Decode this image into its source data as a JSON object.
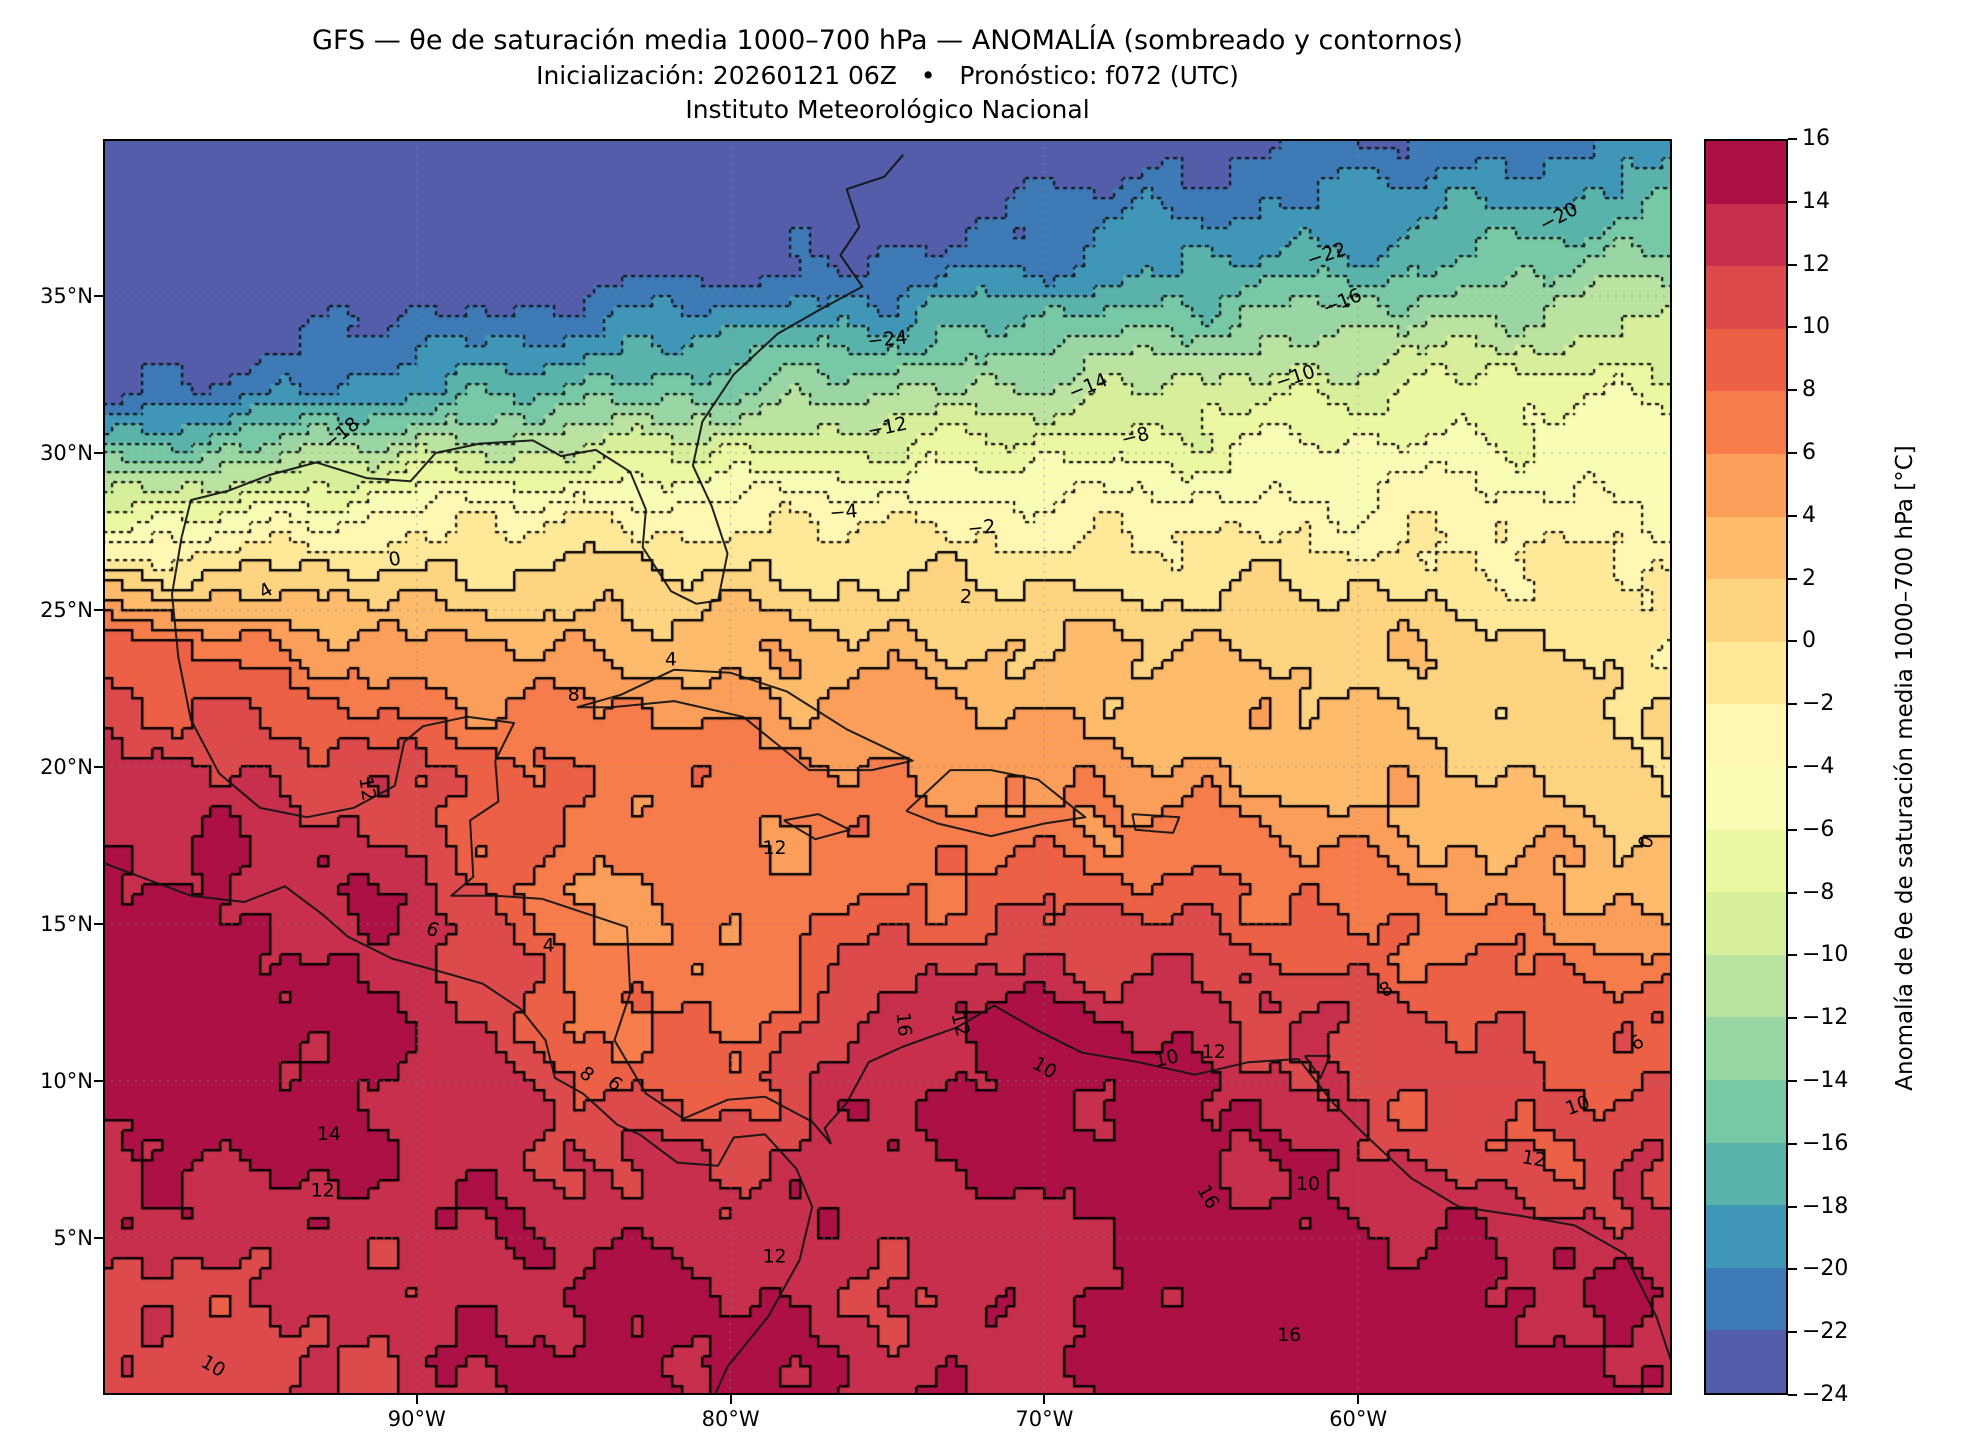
{
  "chart_data": {
    "type": "heatmap",
    "title": "GFS — θe de saturación media 1000–700 hPa — ANOMALÍA (sombreado y contornos)",
    "subtitle": "Inicialización: 20260121 06Z   •   Pronóstico: f072 (UTC)",
    "institution": "Instituto Meteorológico Nacional",
    "map_extent": {
      "lon_min": -100,
      "lon_max": -50,
      "lat_min": 0,
      "lat_max": 40
    },
    "x_axis": {
      "ticks": [
        {
          "label": "90°W",
          "lon": -90
        },
        {
          "label": "80°W",
          "lon": -80
        },
        {
          "label": "70°W",
          "lon": -70
        },
        {
          "label": "60°W",
          "lon": -60
        }
      ]
    },
    "y_axis": {
      "ticks": [
        {
          "label": "35°N",
          "lat": 35
        },
        {
          "label": "30°N",
          "lat": 30
        },
        {
          "label": "25°N",
          "lat": 25
        },
        {
          "label": "20°N",
          "lat": 20
        },
        {
          "label": "15°N",
          "lat": 15
        },
        {
          "label": "10°N",
          "lat": 10
        },
        {
          "label": "5°N",
          "lat": 5
        }
      ]
    },
    "colorbar": {
      "label": "Anomalía de θe de saturación media 1000–700 hPa [°C]",
      "levels_min": -24,
      "levels_max": 16,
      "level_step": 2,
      "tick_labels": [
        "16",
        "14",
        "12",
        "10",
        "8",
        "6",
        "4",
        "2",
        "0",
        "−2",
        "−4",
        "−6",
        "−8",
        "−10",
        "−12",
        "−14",
        "−16",
        "−18",
        "−20",
        "−22",
        "−24"
      ],
      "colors_low_to_high": [
        "#535da9",
        "#3d7ab6",
        "#3f96b7",
        "#59b3ab",
        "#77c9a5",
        "#9ad6a4",
        "#bae3a1",
        "#d7ef9b",
        "#ecf7a2",
        "#f9fcb5",
        "#fff7b2",
        "#ffe898",
        "#fed481",
        "#febb6c",
        "#fb9e5a",
        "#f67d4b",
        "#ec6146",
        "#dd4a4c",
        "#c72f4c",
        "#ac1045"
      ]
    },
    "contours": {
      "interval_c": 2,
      "negative_style": "dotted",
      "zero_positive_style": "solid"
    },
    "field_grid": {
      "lons": [
        -100,
        -95,
        -90,
        -85,
        -80,
        -75,
        -70,
        -65,
        -60,
        -55,
        -50
      ],
      "lats": [
        40,
        36,
        32,
        28,
        24,
        20,
        16,
        12,
        8,
        4,
        0
      ],
      "values_c": [
        [
          -27,
          -27,
          -27,
          -26,
          -26,
          -25,
          -24,
          -23,
          -22,
          -21,
          -20
        ],
        [
          -26,
          -25,
          -25,
          -24,
          -23,
          -22,
          -20,
          -18,
          -17,
          -15,
          -13
        ],
        [
          -23,
          -21,
          -18,
          -16,
          -14,
          -12.5,
          -11,
          -9.5,
          -8,
          -7,
          -6
        ],
        [
          -8,
          -5,
          -3,
          -2.5,
          -2.5,
          -2.5,
          -3,
          -3,
          -3,
          -3,
          -3.5
        ],
        [
          9,
          6,
          4,
          3.5,
          3,
          2.5,
          2,
          2,
          1.5,
          0.5,
          -1
        ],
        [
          13,
          12,
          10,
          8,
          7,
          6,
          5,
          4,
          3,
          1.5,
          0.2
        ],
        [
          15,
          14,
          13,
          6,
          6,
          8,
          9,
          9,
          7,
          5,
          3
        ],
        [
          16,
          15,
          14,
          8,
          7,
          13,
          15,
          13,
          11,
          10,
          9
        ],
        [
          14,
          15,
          14,
          12,
          11,
          14,
          15,
          15,
          12,
          10,
          11
        ],
        [
          12,
          12,
          13,
          14,
          14,
          12,
          13,
          15,
          16,
          14,
          13
        ],
        [
          10,
          11,
          13,
          15,
          15,
          13,
          14,
          16,
          16,
          15,
          14
        ]
      ]
    },
    "contour_labels": [
      {
        "text": "−24",
        "lon": -75.0,
        "lat": 33.6,
        "rot": -6
      },
      {
        "text": "−22",
        "lon": -61.0,
        "lat": 36.3,
        "rot": -18
      },
      {
        "text": "−20",
        "lon": -53.6,
        "lat": 37.5,
        "rot": -28
      },
      {
        "text": "−18",
        "lon": -92.4,
        "lat": 30.6,
        "rot": -38
      },
      {
        "text": "−16",
        "lon": -60.5,
        "lat": 34.8,
        "rot": -22
      },
      {
        "text": "−14",
        "lon": -68.6,
        "lat": 32.1,
        "rot": -22
      },
      {
        "text": "−12",
        "lon": -75.0,
        "lat": 30.8,
        "rot": -12
      },
      {
        "text": "−10",
        "lon": -62.0,
        "lat": 32.4,
        "rot": -18
      },
      {
        "text": "−8",
        "lon": -67.1,
        "lat": 30.5,
        "rot": -14
      },
      {
        "text": "−4",
        "lon": -76.4,
        "lat": 28.1,
        "rot": -5
      },
      {
        "text": "−2",
        "lon": -72.0,
        "lat": 27.6,
        "rot": -6
      },
      {
        "text": "0",
        "lon": -90.7,
        "lat": 26.6,
        "rot": -10
      },
      {
        "text": "4",
        "lon": -94.8,
        "lat": 25.6,
        "rot": -30
      },
      {
        "text": "2",
        "lon": -72.5,
        "lat": 25.4,
        "rot": 4
      },
      {
        "text": "4",
        "lon": -81.9,
        "lat": 23.4,
        "rot": 0
      },
      {
        "text": "8",
        "lon": -85.0,
        "lat": 22.3,
        "rot": 0
      },
      {
        "text": "12",
        "lon": -91.6,
        "lat": 19.3,
        "rot": 80
      },
      {
        "text": "12",
        "lon": -78.6,
        "lat": 17.4,
        "rot": 0
      },
      {
        "text": "6",
        "lon": -89.5,
        "lat": 14.8,
        "rot": 20
      },
      {
        "text": "4",
        "lon": -85.8,
        "lat": 14.3,
        "rot": 0
      },
      {
        "text": "16",
        "lon": -74.5,
        "lat": 11.8,
        "rot": 85
      },
      {
        "text": "12",
        "lon": -72.7,
        "lat": 11.8,
        "rot": 75
      },
      {
        "text": "10",
        "lon": -70.0,
        "lat": 10.4,
        "rot": 30
      },
      {
        "text": "12",
        "lon": -64.6,
        "lat": 10.9,
        "rot": 0
      },
      {
        "text": "10",
        "lon": -66.1,
        "lat": 10.7,
        "rot": -12
      },
      {
        "text": "8",
        "lon": -84.6,
        "lat": 10.2,
        "rot": 40
      },
      {
        "text": "6",
        "lon": -83.7,
        "lat": 9.9,
        "rot": 40
      },
      {
        "text": "14",
        "lon": -92.8,
        "lat": 8.3,
        "rot": 0
      },
      {
        "text": "8",
        "lon": -59.1,
        "lat": 12.9,
        "rot": -30
      },
      {
        "text": "6",
        "lon": -51.1,
        "lat": 11.2,
        "rot": -35
      },
      {
        "text": "10",
        "lon": -53.0,
        "lat": 9.2,
        "rot": -20
      },
      {
        "text": "16",
        "lon": -64.8,
        "lat": 6.3,
        "rot": 60
      },
      {
        "text": "10",
        "lon": -61.6,
        "lat": 6.7,
        "rot": 0
      },
      {
        "text": "12",
        "lon": -54.4,
        "lat": 7.5,
        "rot": 10
      },
      {
        "text": "12",
        "lon": -93.0,
        "lat": 6.5,
        "rot": 0
      },
      {
        "text": "12",
        "lon": -78.6,
        "lat": 4.4,
        "rot": 0
      },
      {
        "text": "10",
        "lon": -96.5,
        "lat": 0.9,
        "rot": 30
      },
      {
        "text": "16",
        "lon": -62.2,
        "lat": 1.9,
        "rot": 0
      },
      {
        "text": "0",
        "lon": -50.8,
        "lat": 17.6,
        "rot": -70
      }
    ]
  }
}
